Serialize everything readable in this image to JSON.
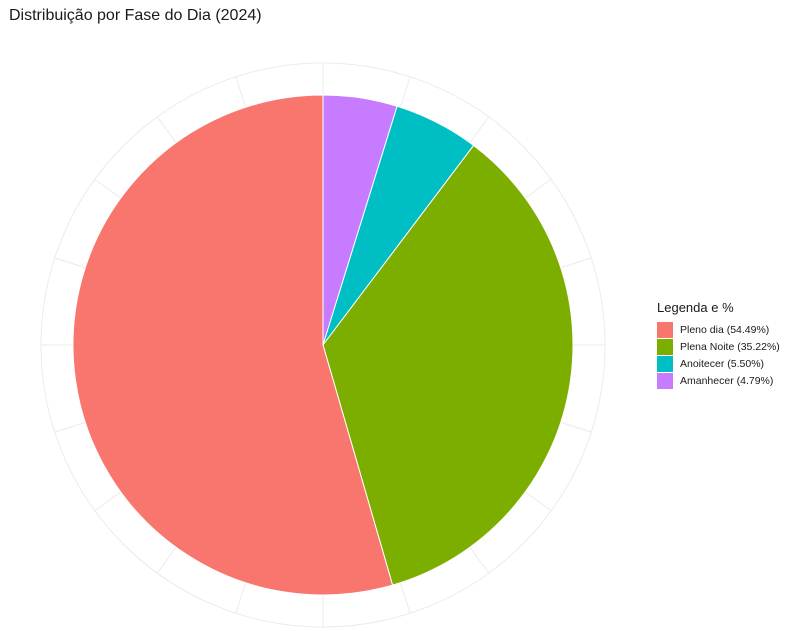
{
  "chart_data": {
    "type": "pie",
    "title": "Distribuição por Fase do Dia (2024)",
    "legend_title": "Legenda e %",
    "legend_position": "right",
    "grid": true,
    "slices": [
      {
        "label": "Pleno dia (54.49%)",
        "value": 54.49,
        "color": "#F8766D"
      },
      {
        "label": "Plena Noite (35.22%)",
        "value": 35.22,
        "color": "#7CAE00"
      },
      {
        "label": "Anoitecer (5.50%)",
        "value": 5.5,
        "color": "#00BFC4"
      },
      {
        "label": "Amanhecer (4.79%)",
        "value": 4.79,
        "color": "#C77CFF"
      }
    ],
    "draw_order": [
      "Amanhecer (4.79%)",
      "Anoitecer (5.50%)",
      "Plena Noite (35.22%)",
      "Pleno dia (54.49%)"
    ]
  }
}
